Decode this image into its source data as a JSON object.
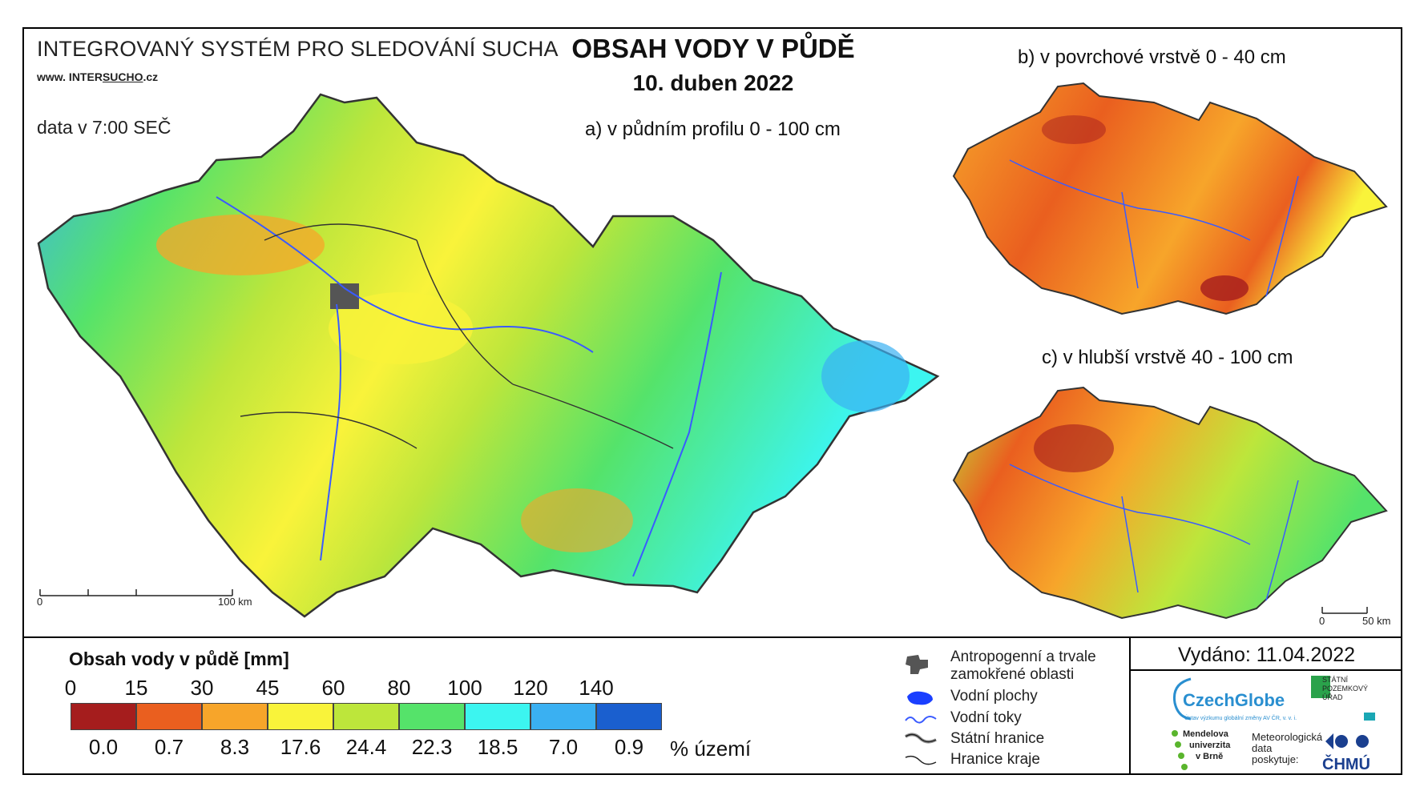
{
  "header": {
    "system_title": "INTEGROVANÝ SYSTÉM PRO SLEDOVÁNÍ SUCHA",
    "url_prefix": "www. INTER",
    "url_underlined": "SUCHO",
    "url_suffix": ".cz",
    "data_time": "data v 7:00 SEČ",
    "main_title": "OBSAH VODY V PŮDĚ",
    "date": "10. duben 2022"
  },
  "maps": {
    "a_label": "a) v půdním profilu 0 - 100 cm",
    "b_label": "b) v povrchové vrstvě 0 - 40 cm",
    "c_label": "c) v hlubší vrstvě 40 - 100 cm",
    "scale_main": {
      "start": "0",
      "end": "100 km"
    },
    "scale_small": {
      "start": "0",
      "end": "50 km"
    }
  },
  "legend": {
    "title": "Obsah vody v půdě  [mm]",
    "thresholds": [
      "0",
      "15",
      "30",
      "45",
      "60",
      "80",
      "100",
      "120",
      "140"
    ],
    "classes": [
      {
        "color": "#a51d1d",
        "percent": "0.0"
      },
      {
        "color": "#ea5f1f",
        "percent": "0.7"
      },
      {
        "color": "#f7a52a",
        "percent": "8.3"
      },
      {
        "color": "#f9f33a",
        "percent": "17.6"
      },
      {
        "color": "#bde63b",
        "percent": "24.4"
      },
      {
        "color": "#55e36a",
        "percent": "22.3"
      },
      {
        "color": "#3cf5f0",
        "percent": "18.5"
      },
      {
        "color": "#3ab0f2",
        "percent": "7.0"
      },
      {
        "color": "#1a5fcf",
        "percent": "0.9"
      }
    ],
    "percent_unit": "% území"
  },
  "symbols": {
    "anthropogenic_line1": "Antropogenní a trvale",
    "anthropogenic_line2": "zamokřené oblasti",
    "water_bodies": "Vodní plochy",
    "streams": "Vodní toky",
    "state_border": "Státní hranice",
    "region_border": "Hranice kraje"
  },
  "footer": {
    "issued": "Vydáno: 11.04.2022",
    "czechglobe": "CzechGlobe",
    "czechglobe_sub": "Ústav výzkumu globální změny AV ČR, v. v. i.",
    "spu_line1": "STÁTNÍ",
    "spu_line2": "POZEMKOVÝ",
    "spu_line3": "ÚŘAD",
    "mendel_line1": "Mendelova",
    "mendel_line2": "univerzita",
    "mendel_line3": "v Brně",
    "met_line1": "Meteorologická",
    "met_line2": "data",
    "met_line3": "poskytuje:",
    "chmu": "ČHMÚ"
  }
}
